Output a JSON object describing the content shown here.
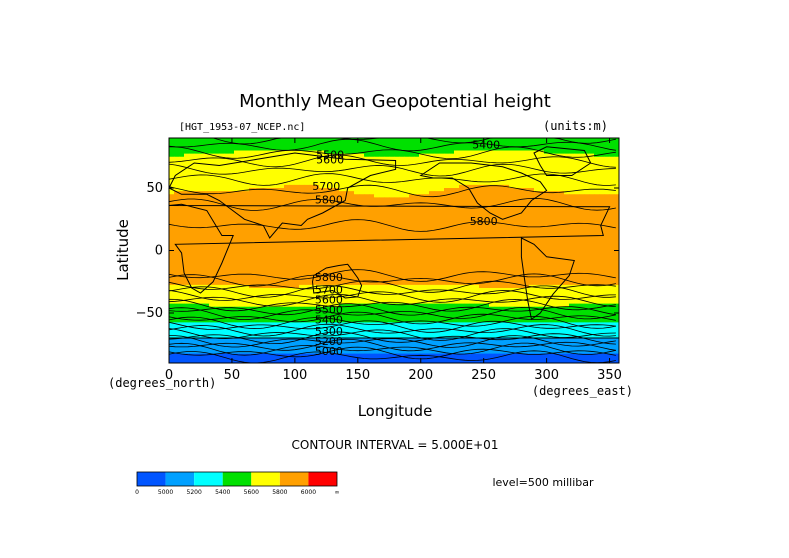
{
  "chart_data": {
    "type": "heatmap",
    "title": "Monthly Mean Geopotential height",
    "file_label": "[HGT_1953-07_NCEP.nc]",
    "units_label": "(units:m)",
    "xlabel": "Longitude",
    "ylabel": "Latitude",
    "x_units": "(degrees_east)",
    "y_units": "(degrees_north)",
    "xlim": [
      0,
      357.5
    ],
    "ylim": [
      -90,
      90
    ],
    "x_ticks": [
      0,
      50,
      100,
      150,
      200,
      250,
      300,
      350
    ],
    "y_ticks": [
      -50,
      0,
      50
    ],
    "contour_interval_text": "CONTOUR INTERVAL = 5.000E+01",
    "contour_interval": 50,
    "level_text": "level=500 millibar",
    "contour_labels": [
      {
        "text": "5400",
        "lon": 252,
        "lat": 84
      },
      {
        "text": "5500",
        "lon": 128,
        "lat": 76
      },
      {
        "text": "5600",
        "lon": 128,
        "lat": 72
      },
      {
        "text": "5700",
        "lon": 125,
        "lat": 51
      },
      {
        "text": "5800",
        "lon": 127,
        "lat": 40
      },
      {
        "text": "5800",
        "lon": 250,
        "lat": 23
      },
      {
        "text": "5800",
        "lon": 127,
        "lat": -22
      },
      {
        "text": "5700",
        "lon": 127,
        "lat": -32
      },
      {
        "text": "5600",
        "lon": 127,
        "lat": -40
      },
      {
        "text": "5500",
        "lon": 127,
        "lat": -48
      },
      {
        "text": "5400",
        "lon": 127,
        "lat": -56
      },
      {
        "text": "5300",
        "lon": 127,
        "lat": -65
      },
      {
        "text": "5200",
        "lon": 127,
        "lat": -73
      },
      {
        "text": "5000",
        "lon": 127,
        "lat": -81
      }
    ],
    "colorbar": {
      "colors": [
        "#0055ff",
        "#00a0ff",
        "#00ffff",
        "#00e000",
        "#ffff00",
        "#ffa000",
        "#ff0000"
      ],
      "labels": [
        "0",
        "5000",
        "5200",
        "5400",
        "5600",
        "5800",
        "6000",
        "∞"
      ]
    },
    "color_bands": [
      {
        "max": 5000,
        "color": "#0055ff"
      },
      {
        "max": 5200,
        "color": "#00a0ff"
      },
      {
        "max": 5400,
        "color": "#00ffff"
      },
      {
        "max": 5600,
        "color": "#00e000"
      },
      {
        "max": 5800,
        "color": "#ffff00"
      },
      {
        "max": 6000,
        "color": "#ffa000"
      },
      {
        "max": 99999,
        "color": "#ff0000"
      }
    ]
  }
}
